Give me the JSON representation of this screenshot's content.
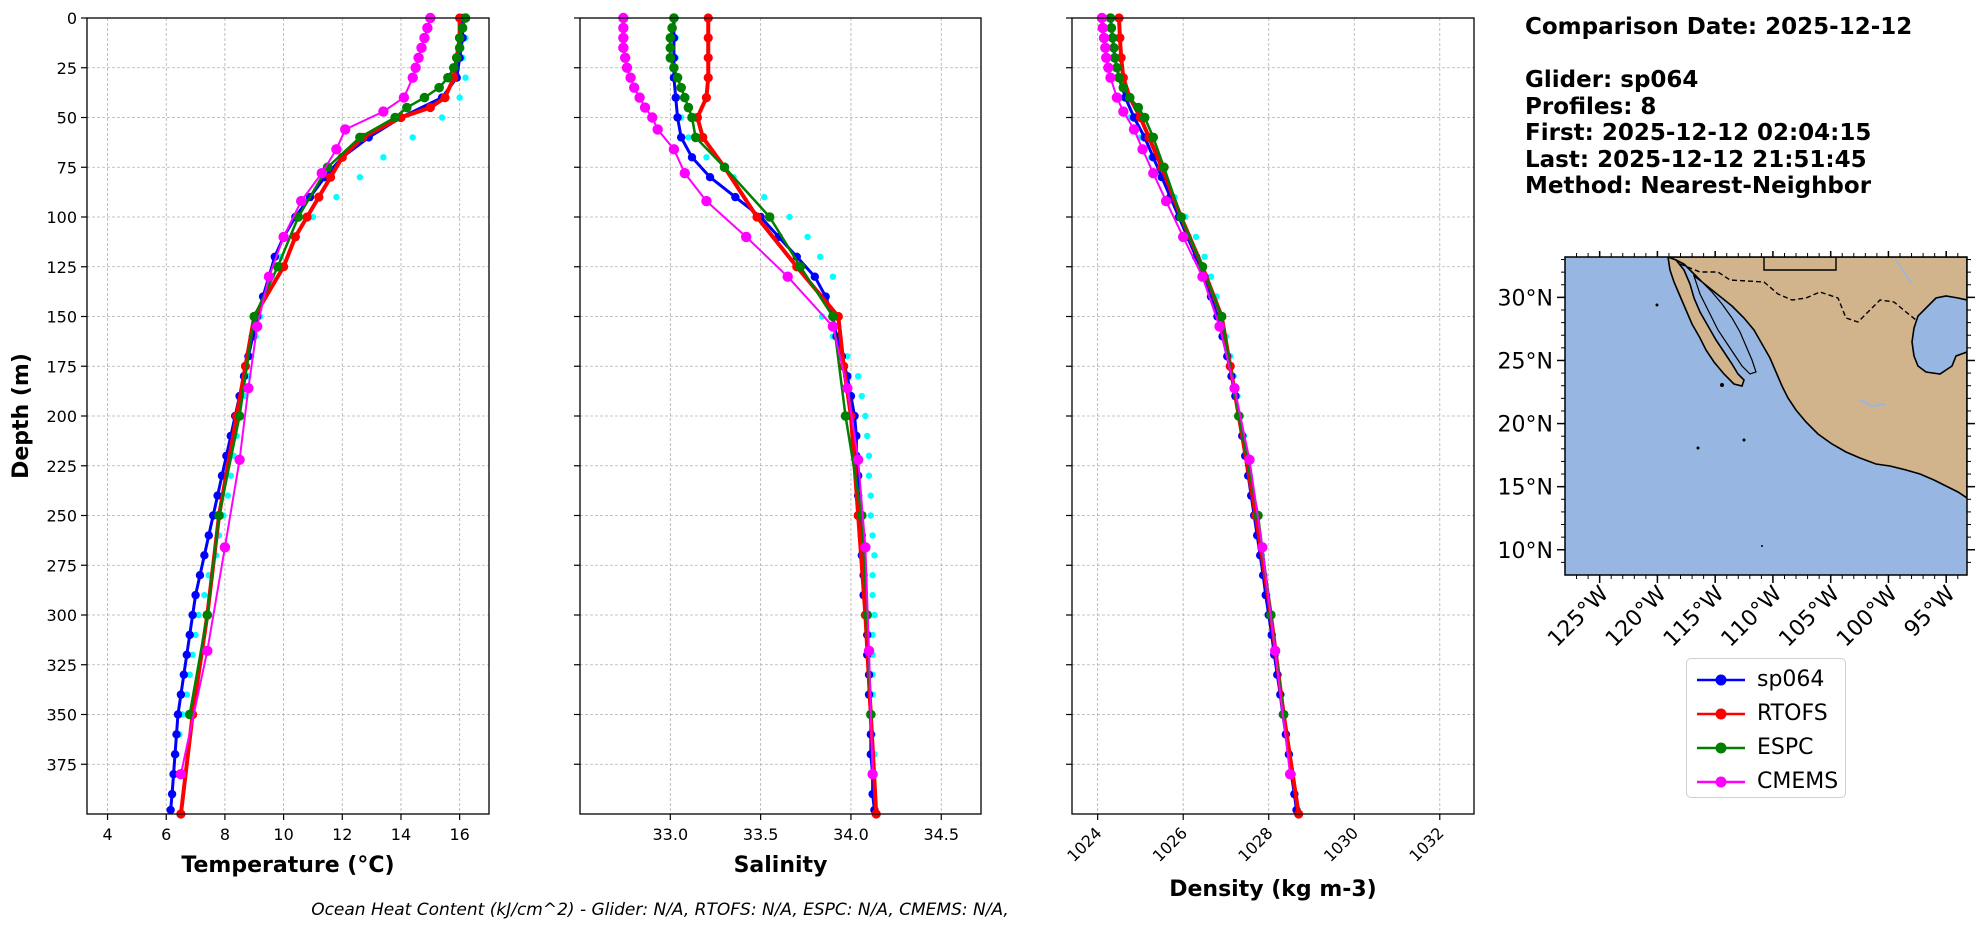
{
  "chart_data": [
    {
      "type": "line",
      "xlabel": "Temperature (°C)",
      "ylabel": "Depth (m)",
      "xlim": [
        3.3,
        17
      ],
      "ylim": [
        400,
        0
      ],
      "xticks": [
        "4",
        "6",
        "8",
        "10",
        "12",
        "14",
        "16"
      ],
      "xtick_values": [
        4,
        6,
        8,
        10,
        12,
        14,
        16
      ],
      "yticks": [
        "0",
        "25",
        "50",
        "75",
        "100",
        "125",
        "150",
        "175",
        "200",
        "225",
        "250",
        "275",
        "300",
        "325",
        "350",
        "375"
      ],
      "ytick_values": [
        0,
        25,
        50,
        75,
        100,
        125,
        150,
        175,
        200,
        225,
        250,
        275,
        300,
        325,
        350,
        375
      ],
      "grid": true,
      "series": [
        {
          "name": "sp064",
          "color": "#0000ff",
          "depth": [
            0,
            10,
            20,
            30,
            40,
            50,
            60,
            70,
            80,
            90,
            100,
            110,
            120,
            130,
            140,
            150,
            160,
            170,
            180,
            190,
            200,
            210,
            220,
            230,
            240,
            250,
            260,
            270,
            280,
            290,
            300,
            310,
            320,
            330,
            340,
            350,
            360,
            370,
            380,
            390,
            398
          ],
          "values": [
            16.1,
            16.1,
            16.0,
            15.9,
            15.4,
            14.0,
            12.9,
            12.0,
            11.4,
            10.9,
            10.4,
            10.0,
            9.7,
            9.5,
            9.3,
            9.1,
            8.95,
            8.8,
            8.65,
            8.5,
            8.35,
            8.2,
            8.05,
            7.9,
            7.75,
            7.6,
            7.45,
            7.3,
            7.15,
            7.0,
            6.9,
            6.8,
            6.7,
            6.6,
            6.5,
            6.4,
            6.35,
            6.3,
            6.25,
            6.2,
            6.15
          ]
        },
        {
          "name": "RTOFS",
          "color": "#ff0000",
          "depth": [
            0,
            10,
            20,
            30,
            40,
            45,
            50,
            60,
            70,
            80,
            90,
            100,
            110,
            125,
            150,
            175,
            200,
            250,
            300,
            350,
            400
          ],
          "values": [
            16.0,
            16.0,
            15.9,
            15.8,
            15.5,
            15.0,
            14.0,
            12.7,
            12.0,
            11.6,
            11.2,
            10.8,
            10.4,
            10.0,
            9.0,
            8.7,
            8.4,
            7.8,
            7.4,
            6.9,
            6.5
          ]
        },
        {
          "name": "ESPC",
          "color": "#008000",
          "depth": [
            0,
            5,
            10,
            15,
            20,
            25,
            30,
            35,
            40,
            45,
            50,
            60,
            75,
            100,
            125,
            150,
            200,
            250,
            300,
            350
          ],
          "values": [
            16.2,
            16.1,
            16.0,
            16.0,
            15.9,
            15.8,
            15.6,
            15.3,
            14.8,
            14.2,
            13.8,
            12.6,
            11.5,
            10.5,
            9.8,
            9.0,
            8.5,
            7.8,
            7.4,
            6.8
          ]
        },
        {
          "name": "CMEMS",
          "color": "#ff00ff",
          "depth": [
            0,
            5,
            10,
            15,
            20,
            25,
            30,
            40,
            47,
            56,
            66,
            78,
            92,
            110,
            130,
            155,
            186,
            222,
            266,
            318,
            380
          ],
          "values": [
            15.0,
            14.9,
            14.8,
            14.7,
            14.6,
            14.5,
            14.4,
            14.1,
            13.4,
            12.1,
            11.8,
            11.3,
            10.6,
            10.0,
            9.5,
            9.1,
            8.8,
            8.5,
            8.0,
            7.4,
            6.5
          ]
        },
        {
          "name": "",
          "color": "#00ffff",
          "depth": [
            0,
            10,
            20,
            30,
            40,
            50,
            60,
            70,
            80,
            90,
            100,
            110,
            120,
            130,
            140,
            150,
            160,
            170,
            180,
            190,
            200,
            210,
            220,
            230,
            240,
            250,
            260,
            270,
            280,
            290,
            300,
            310,
            320,
            330,
            340,
            350,
            360,
            370,
            380
          ],
          "values": [
            16.2,
            16.2,
            16.1,
            16.2,
            16.0,
            15.4,
            14.4,
            13.4,
            12.6,
            11.8,
            11.0,
            10.4,
            9.9,
            9.6,
            9.3,
            9.2,
            9.05,
            8.9,
            8.8,
            8.7,
            8.55,
            8.4,
            8.3,
            8.2,
            8.1,
            7.95,
            7.8,
            7.7,
            7.45,
            7.3,
            7.1,
            7.0,
            6.9,
            6.8,
            6.7,
            6.55,
            6.45,
            6.35,
            6.3
          ]
        }
      ]
    },
    {
      "type": "line",
      "xlabel": "Salinity",
      "ylabel": "",
      "xlim": [
        32.5,
        34.72
      ],
      "ylim": [
        400,
        0
      ],
      "xticks": [
        "33.0",
        "33.5",
        "34.0",
        "34.5"
      ],
      "xtick_values": [
        33.0,
        33.5,
        34.0,
        34.5
      ],
      "grid": true,
      "series": [
        {
          "name": "sp064",
          "color": "#0000ff",
          "depth": [
            0,
            10,
            20,
            30,
            40,
            50,
            60,
            70,
            80,
            90,
            100,
            110,
            120,
            130,
            140,
            150,
            160,
            170,
            180,
            190,
            200,
            210,
            220,
            230,
            240,
            250,
            260,
            270,
            280,
            290,
            300,
            310,
            320,
            330,
            340,
            350,
            360,
            370,
            380,
            390,
            398
          ],
          "values": [
            33.02,
            33.02,
            33.02,
            33.02,
            33.03,
            33.04,
            33.06,
            33.12,
            33.22,
            33.36,
            33.5,
            33.6,
            33.7,
            33.8,
            33.86,
            33.9,
            33.92,
            33.95,
            33.98,
            34.0,
            34.02,
            34.03,
            34.03,
            34.04,
            34.04,
            34.05,
            34.06,
            34.06,
            34.07,
            34.07,
            34.08,
            34.09,
            34.09,
            34.1,
            34.1,
            34.11,
            34.11,
            34.11,
            34.12,
            34.12,
            34.13
          ]
        },
        {
          "name": "RTOFS",
          "color": "#ff0000",
          "depth": [
            0,
            10,
            20,
            30,
            40,
            50,
            60,
            75,
            100,
            125,
            150,
            175,
            200,
            250,
            300,
            350,
            400
          ],
          "values": [
            33.21,
            33.21,
            33.21,
            33.21,
            33.2,
            33.15,
            33.18,
            33.3,
            33.48,
            33.7,
            33.93,
            33.96,
            34.0,
            34.04,
            34.08,
            34.11,
            34.14
          ]
        },
        {
          "name": "ESPC",
          "color": "#008000",
          "depth": [
            0,
            5,
            10,
            15,
            20,
            25,
            30,
            35,
            40,
            45,
            50,
            60,
            75,
            100,
            125,
            150,
            200,
            250,
            300,
            350
          ],
          "values": [
            33.02,
            33.01,
            33.0,
            33.0,
            33.0,
            33.02,
            33.04,
            33.06,
            33.08,
            33.1,
            33.12,
            33.14,
            33.3,
            33.55,
            33.72,
            33.9,
            33.97,
            34.06,
            34.09,
            34.11
          ]
        },
        {
          "name": "CMEMS",
          "color": "#ff00ff",
          "depth": [
            0,
            5,
            10,
            15,
            20,
            25,
            30,
            35,
            40,
            45,
            50,
            56,
            66,
            78,
            92,
            110,
            130,
            155,
            186,
            222,
            266,
            318,
            380
          ],
          "values": [
            32.74,
            32.74,
            32.74,
            32.74,
            32.75,
            32.76,
            32.78,
            32.8,
            32.83,
            32.86,
            32.9,
            32.93,
            33.02,
            33.08,
            33.2,
            33.42,
            33.65,
            33.9,
            33.98,
            34.04,
            34.08,
            34.1,
            34.12
          ]
        },
        {
          "name": "",
          "color": "#00ffff",
          "depth": [
            0,
            10,
            20,
            30,
            40,
            50,
            60,
            70,
            80,
            90,
            100,
            110,
            120,
            130,
            140,
            150,
            160,
            170,
            180,
            190,
            200,
            210,
            220,
            230,
            240,
            250,
            260,
            270,
            280,
            290,
            300,
            310,
            320,
            330,
            340,
            350,
            360,
            370,
            380
          ],
          "values": [
            33.03,
            33.03,
            33.03,
            33.03,
            33.04,
            33.06,
            33.1,
            33.2,
            33.35,
            33.52,
            33.66,
            33.76,
            33.83,
            33.9,
            33.86,
            33.84,
            33.9,
            33.98,
            34.04,
            34.06,
            34.08,
            34.09,
            34.1,
            34.1,
            34.11,
            34.11,
            34.12,
            34.13,
            34.12,
            34.12,
            34.13,
            34.12,
            34.12,
            34.12,
            34.12,
            34.12,
            34.12,
            34.13,
            34.13
          ]
        }
      ]
    },
    {
      "type": "line",
      "xlabel": "Density (kg m-3)",
      "ylabel": "",
      "xlim": [
        1023.4,
        1032.8
      ],
      "ylim": [
        400,
        0
      ],
      "xticks": [
        "1024",
        "1026",
        "1028",
        "1030",
        "1032"
      ],
      "xtick_values": [
        1024,
        1026,
        1028,
        1030,
        1032
      ],
      "grid": true,
      "series": [
        {
          "name": "sp064",
          "color": "#0000ff",
          "depth": [
            0,
            10,
            20,
            30,
            40,
            50,
            60,
            70,
            80,
            90,
            100,
            110,
            120,
            130,
            140,
            150,
            160,
            170,
            180,
            190,
            200,
            210,
            220,
            230,
            240,
            250,
            260,
            270,
            280,
            290,
            300,
            310,
            320,
            330,
            340,
            350,
            360,
            370,
            380,
            390,
            398
          ],
          "values": [
            1024.3,
            1024.35,
            1024.4,
            1024.5,
            1024.65,
            1024.85,
            1025.1,
            1025.3,
            1025.5,
            1025.7,
            1025.9,
            1026.1,
            1026.3,
            1026.5,
            1026.65,
            1026.8,
            1026.92,
            1027.03,
            1027.13,
            1027.22,
            1027.3,
            1027.38,
            1027.45,
            1027.52,
            1027.59,
            1027.66,
            1027.73,
            1027.8,
            1027.87,
            1027.93,
            1028.0,
            1028.07,
            1028.13,
            1028.2,
            1028.27,
            1028.33,
            1028.4,
            1028.47,
            1028.53,
            1028.6,
            1028.65
          ]
        },
        {
          "name": "RTOFS",
          "color": "#ff0000",
          "depth": [
            0,
            10,
            20,
            30,
            40,
            50,
            60,
            75,
            100,
            125,
            150,
            175,
            200,
            250,
            300,
            350,
            400
          ],
          "values": [
            1024.5,
            1024.52,
            1024.55,
            1024.6,
            1024.75,
            1025.0,
            1025.2,
            1025.5,
            1025.95,
            1026.45,
            1026.9,
            1027.1,
            1027.3,
            1027.7,
            1028.05,
            1028.35,
            1028.7
          ]
        },
        {
          "name": "ESPC",
          "color": "#008000",
          "depth": [
            0,
            5,
            10,
            15,
            20,
            25,
            30,
            35,
            40,
            45,
            50,
            60,
            75,
            100,
            125,
            150,
            200,
            250,
            300,
            350
          ],
          "values": [
            1024.3,
            1024.32,
            1024.35,
            1024.38,
            1024.4,
            1024.45,
            1024.5,
            1024.6,
            1024.75,
            1024.95,
            1025.1,
            1025.3,
            1025.55,
            1025.95,
            1026.45,
            1026.9,
            1027.3,
            1027.75,
            1028.05,
            1028.35
          ]
        },
        {
          "name": "CMEMS",
          "color": "#ff00ff",
          "depth": [
            0,
            5,
            10,
            15,
            20,
            25,
            30,
            40,
            47,
            56,
            66,
            78,
            92,
            110,
            130,
            155,
            186,
            222,
            266,
            318,
            380
          ],
          "values": [
            1024.1,
            1024.12,
            1024.15,
            1024.18,
            1024.2,
            1024.25,
            1024.3,
            1024.45,
            1024.6,
            1024.85,
            1025.05,
            1025.3,
            1025.6,
            1026.0,
            1026.45,
            1026.85,
            1027.2,
            1027.55,
            1027.85,
            1028.15,
            1028.5
          ]
        },
        {
          "name": "",
          "color": "#00ffff",
          "depth": [
            0,
            10,
            20,
            30,
            40,
            50,
            60,
            70,
            80,
            90,
            100,
            110,
            120,
            130,
            140,
            150,
            160,
            170,
            180,
            190,
            200,
            210,
            220,
            230,
            240,
            250,
            260,
            270,
            280,
            290,
            300,
            310,
            320,
            330,
            340,
            350,
            360,
            370,
            380
          ],
          "values": [
            1024.3,
            1024.3,
            1024.35,
            1024.45,
            1024.55,
            1024.75,
            1025.0,
            1025.25,
            1025.5,
            1025.8,
            1026.05,
            1026.3,
            1026.5,
            1026.65,
            1026.78,
            1026.9,
            1027.0,
            1027.1,
            1027.18,
            1027.27,
            1027.35,
            1027.42,
            1027.5,
            1027.56,
            1027.63,
            1027.7,
            1027.77,
            1027.84,
            1027.9,
            1027.97,
            1028.04,
            1028.1,
            1028.17,
            1028.24,
            1028.3,
            1028.37,
            1028.43,
            1028.5,
            1028.56
          ]
        }
      ]
    }
  ],
  "info": {
    "comparison_date": "Comparison Date: 2025-12-12",
    "glider": "Glider: sp064",
    "profiles": "Profiles: 8",
    "first": "First: 2025-12-12 02:04:15",
    "last": "Last: 2025-12-12 21:51:45",
    "method": "Method: Nearest-Neighbor"
  },
  "map": {
    "lon_labels": [
      "125°W",
      "120°W",
      "115°W",
      "110°W",
      "105°W",
      "100°W",
      "95°W"
    ],
    "lat_labels": [
      "30°N",
      "25°N",
      "20°N",
      "15°N",
      "10°N"
    ],
    "ocean_color": "#97b6e1",
    "land_color": "#d2b48c"
  },
  "legend": {
    "items": [
      {
        "label": "sp064",
        "color": "#0000ff"
      },
      {
        "label": "RTOFS",
        "color": "#ff0000"
      },
      {
        "label": "ESPC",
        "color": "#008000"
      },
      {
        "label": "CMEMS",
        "color": "#ff00ff"
      }
    ]
  },
  "footnote": "Ocean Heat Content (kJ/cm^2) - Glider: N/A,  RTOFS: N/A,  ESPC: N/A,  CMEMS: N/A,"
}
